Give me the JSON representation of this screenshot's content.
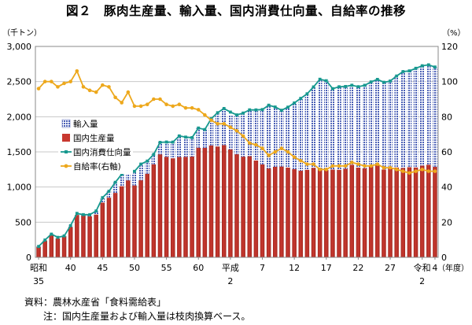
{
  "title": "図２　豚肉生産量、輸入量、国内消費仕向量、自給率の推移",
  "source": "資料：農林水産省「食料需給表」",
  "note": "注：国内生産量および輸入量は枝肉換算ベース。",
  "chart_data": {
    "type": "bar",
    "stacked": true,
    "grid": true,
    "legend_position": "left-middle",
    "left_unit": "（千トン）",
    "right_unit": "（%）",
    "x_unit": "（年度）",
    "ylim_left": [
      0,
      3000
    ],
    "ylim_right": [
      0,
      120
    ],
    "left_ticks": [
      "0",
      "500",
      "1,000",
      "1,500",
      "2,000",
      "2,500",
      "3,000"
    ],
    "right_ticks": [
      "0",
      "20",
      "40",
      "60",
      "80",
      "100",
      "120"
    ],
    "x_tick_labels": [
      {
        "index": 0,
        "line1": "昭和",
        "line2": "35"
      },
      {
        "index": 5,
        "line1": "40",
        "line2": ""
      },
      {
        "index": 10,
        "line1": "45",
        "line2": ""
      },
      {
        "index": 15,
        "line1": "50",
        "line2": ""
      },
      {
        "index": 20,
        "line1": "55",
        "line2": ""
      },
      {
        "index": 25,
        "line1": "60",
        "line2": ""
      },
      {
        "index": 30,
        "line1": "平成",
        "line2": "2"
      },
      {
        "index": 35,
        "line1": "7",
        "line2": ""
      },
      {
        "index": 40,
        "line1": "12",
        "line2": ""
      },
      {
        "index": 45,
        "line1": "17",
        "line2": ""
      },
      {
        "index": 50,
        "line1": "22",
        "line2": ""
      },
      {
        "index": 55,
        "line1": "27",
        "line2": ""
      },
      {
        "index": 60,
        "line1": "令和",
        "line2": "2"
      },
      {
        "index": 62,
        "line1": "4",
        "line2": ""
      }
    ],
    "categories": [
      "S35",
      "S36",
      "S37",
      "S38",
      "S39",
      "S40",
      "S41",
      "S42",
      "S43",
      "S44",
      "S45",
      "S46",
      "S47",
      "S48",
      "S49",
      "S50",
      "S51",
      "S52",
      "S53",
      "S54",
      "S55",
      "S56",
      "S57",
      "S58",
      "S59",
      "S60",
      "S61",
      "S62",
      "S63",
      "H1",
      "H2",
      "H3",
      "H4",
      "H5",
      "H6",
      "H7",
      "H8",
      "H9",
      "H10",
      "H11",
      "H12",
      "H13",
      "H14",
      "H15",
      "H16",
      "H17",
      "H18",
      "H19",
      "H20",
      "H21",
      "H22",
      "H23",
      "H24",
      "H25",
      "H26",
      "H27",
      "H28",
      "H29",
      "H30",
      "R1",
      "R2",
      "R3",
      "R4"
    ],
    "series": [
      {
        "name": "輸入量",
        "kind": "bar",
        "axis": "left",
        "color": "#4a5fb5",
        "values": [
          6,
          6,
          8,
          13,
          5,
          20,
          22,
          12,
          25,
          50,
          70,
          90,
          150,
          170,
          120,
          200,
          230,
          180,
          140,
          170,
          210,
          230,
          300,
          280,
          270,
          280,
          260,
          380,
          480,
          520,
          480,
          560,
          620,
          660,
          720,
          780,
          900,
          850,
          800,
          860,
          940,
          1030,
          1080,
          1150,
          1270,
          1270,
          1150,
          1180,
          1170,
          1130,
          1150,
          1180,
          1200,
          1220,
          1240,
          1240,
          1300,
          1370,
          1370,
          1410,
          1420,
          1420,
          1420
        ]
      },
      {
        "name": "国内生産量",
        "kind": "bar",
        "axis": "left",
        "color": "#c8382f",
        "values": [
          149,
          240,
          322,
          271,
          300,
          431,
          603,
          595,
          582,
          609,
          779,
          849,
          917,
          1012,
          1095,
          1023,
          1096,
          1189,
          1324,
          1465,
          1430,
          1409,
          1427,
          1430,
          1433,
          1559,
          1558,
          1592,
          1577,
          1597,
          1536,
          1466,
          1432,
          1438,
          1377,
          1322,
          1264,
          1288,
          1292,
          1276,
          1256,
          1231,
          1246,
          1274,
          1263,
          1242,
          1249,
          1246,
          1260,
          1318,
          1277,
          1267,
          1295,
          1311,
          1250,
          1268,
          1279,
          1272,
          1282,
          1279,
          1305,
          1318,
          1287
        ]
      },
      {
        "name": "国内消費仕向量",
        "kind": "line",
        "axis": "left",
        "color": "#17998f",
        "values": [
          155,
          246,
          330,
          284,
          305,
          451,
          625,
          607,
          607,
          659,
          849,
          939,
          1067,
          1182,
          1215,
          1223,
          1326,
          1369,
          1464,
          1635,
          1640,
          1639,
          1727,
          1710,
          1703,
          1839,
          1818,
          1972,
          2057,
          2117,
          2066,
          2026,
          2052,
          2098,
          2097,
          2102,
          2164,
          2138,
          2092,
          2136,
          2196,
          2261,
          2326,
          2424,
          2533,
          2512,
          2399,
          2426,
          2430,
          2448,
          2427,
          2447,
          2495,
          2531,
          2490,
          2508,
          2579,
          2642,
          2652,
          2689,
          2725,
          2738,
          2707
        ]
      },
      {
        "name": "自給率(右軸)",
        "kind": "line",
        "axis": "right",
        "color": "#eda81c",
        "values": [
          96,
          100,
          100,
          97,
          99,
          100,
          106,
          97,
          95,
          94,
          98,
          97,
          91,
          88,
          94,
          86,
          86,
          87,
          90,
          90,
          87,
          86,
          87,
          85,
          85,
          84,
          81,
          78,
          76,
          76,
          74,
          72,
          69,
          65,
          64,
          62,
          58,
          60,
          62,
          60,
          57,
          55,
          53,
          53,
          50,
          50,
          52,
          52,
          52,
          54,
          53,
          52,
          52,
          53,
          51,
          51,
          50,
          49,
          48,
          49,
          50,
          49,
          49
        ]
      }
    ]
  }
}
